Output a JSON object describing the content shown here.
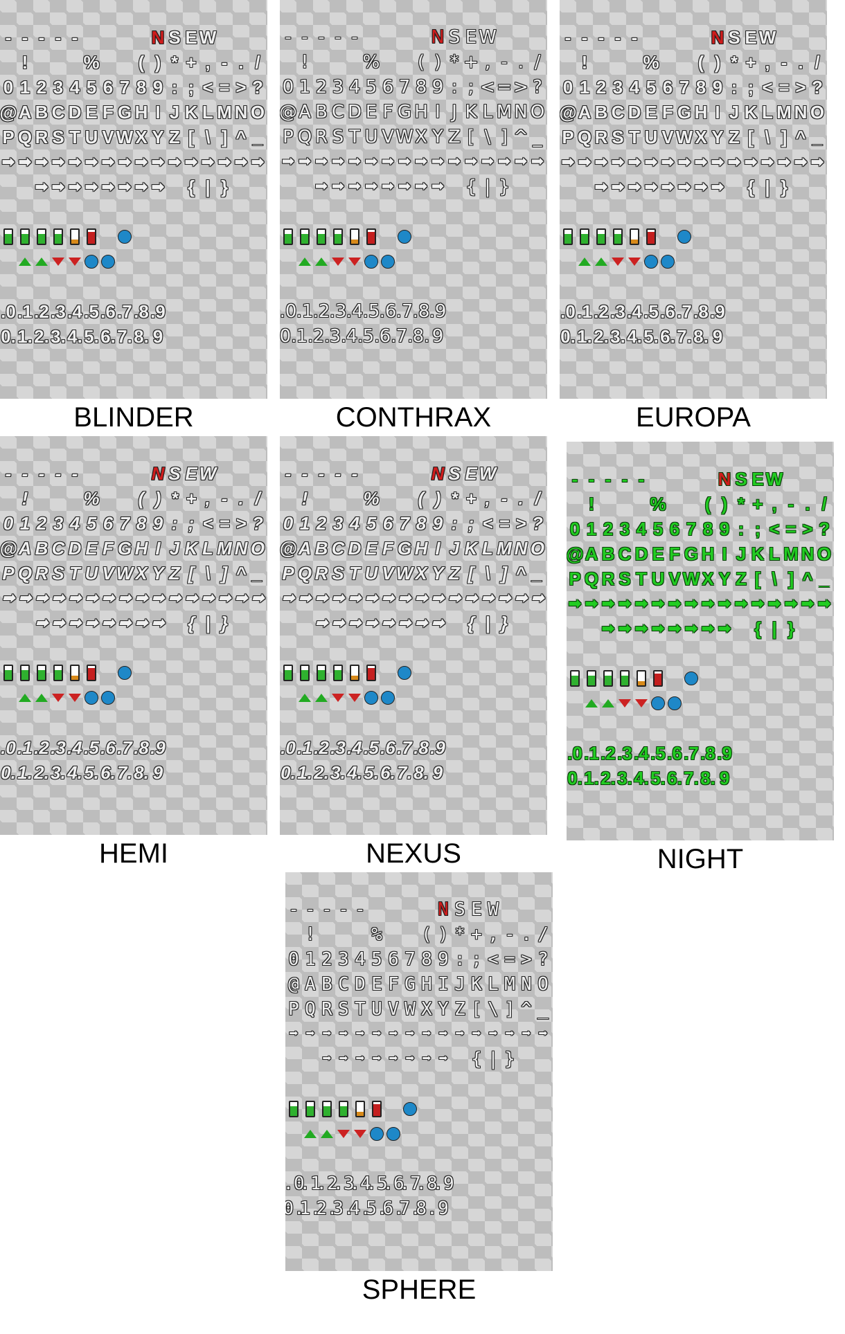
{
  "fonts": [
    {
      "name": "BLINDER",
      "style": "bold"
    },
    {
      "name": "CONTHRAX",
      "style": "condensed"
    },
    {
      "name": "EUROPA",
      "style": "bold"
    },
    {
      "name": "HEMI",
      "style": "italic"
    },
    {
      "name": "NEXUS",
      "style": "italic"
    },
    {
      "name": "NIGHT",
      "style": "night"
    },
    {
      "name": "SPHERE",
      "style": "mono"
    }
  ],
  "rows": [
    [
      "",
      "",
      "",
      "",
      "",
      "",
      "",
      "",
      "",
      "",
      "",
      "",
      "",
      "",
      "",
      ""
    ],
    [
      "-",
      "-",
      "-",
      "-",
      "-",
      "",
      "",
      "",
      "",
      "N",
      "S",
      "E",
      "W",
      "",
      "",
      ""
    ],
    [
      "",
      "!",
      "",
      "",
      "",
      "%",
      "",
      "",
      "(",
      ")",
      "*",
      "+",
      ",",
      "-",
      ".",
      "/"
    ],
    [
      "0",
      "1",
      "2",
      "3",
      "4",
      "5",
      "6",
      "7",
      "8",
      "9",
      ":",
      ";",
      "<",
      "=",
      ">",
      "?"
    ],
    [
      "@",
      "A",
      "B",
      "C",
      "D",
      "E",
      "F",
      "G",
      "H",
      "I",
      "J",
      "K",
      "L",
      "M",
      "N",
      "O"
    ],
    [
      "P",
      "Q",
      "R",
      "S",
      "T",
      "U",
      "V",
      "W",
      "X",
      "Y",
      "Z",
      "[",
      "\\",
      "]",
      "^",
      "_"
    ],
    [
      "➡",
      "➡",
      "➡",
      "➡",
      "➡",
      "➡",
      "➡",
      "➡",
      "➡",
      "➡",
      "➡",
      "➡",
      "➡",
      "➡",
      "➡",
      "➡"
    ],
    [
      "",
      "",
      "➡",
      "➡",
      "➡",
      "➡",
      "➡",
      "➡",
      "➡",
      "➡",
      "",
      "{",
      "|",
      "}",
      "",
      ""
    ],
    [
      "",
      "",
      "",
      "",
      "",
      "",
      "",
      "",
      "",
      "",
      "",
      "",
      "",
      "",
      "",
      ""
    ],
    [
      "",
      "",
      "",
      "",
      "",
      "",
      "",
      "",
      "",
      "",
      "",
      "",
      "",
      "",
      "",
      ""
    ],
    [
      "",
      "",
      "",
      "",
      "",
      "",
      "",
      "",
      "",
      "",
      "",
      "",
      "",
      "",
      "",
      ""
    ],
    [
      "",
      "",
      "",
      "",
      "",
      "",
      "",
      "",
      "",
      "",
      "",
      "",
      "",
      "",
      "",
      ""
    ],
    [
      ".0",
      ".1",
      ".2",
      ".3",
      ".4",
      ".5",
      ".6",
      ".7",
      ".8",
      ".9",
      "",
      "",
      "",
      "",
      "",
      ""
    ],
    [
      "0.",
      "1.",
      "2.",
      "3.",
      "4.",
      "5.",
      "6.",
      "7.",
      "8.",
      "9",
      "",
      "",
      "",
      "",
      "",
      ""
    ],
    [
      "",
      "",
      "",
      "",
      "",
      "",
      "",
      "",
      "",
      "",
      "",
      "",
      "",
      "",
      "",
      ""
    ],
    [
      "",
      "",
      "",
      "",
      "",
      "",
      "",
      "",
      "",
      "",
      "",
      "",
      "",
      "",
      "",
      ""
    ]
  ]
}
